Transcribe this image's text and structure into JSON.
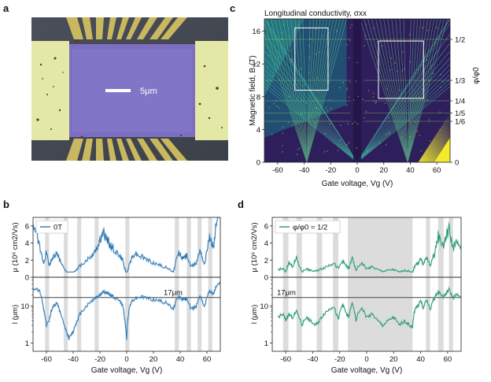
{
  "panels": {
    "a": {
      "letter": "a",
      "scale_bar_label": "5μm"
    },
    "b": {
      "letter": "b"
    },
    "c": {
      "letter": "c"
    },
    "d": {
      "letter": "d"
    }
  },
  "chart_data": [
    {
      "panel": "c",
      "type": "heatmap",
      "title": "Longitudinal conductivity, σxx",
      "xlabel": "Gate voltage, Vg (V)",
      "ylabel": "Magnetic field, B (T)",
      "right_label": "φ/φ0",
      "xlim": [
        -70,
        70
      ],
      "ylim": [
        0,
        17.5
      ],
      "xticks": [
        -60,
        -40,
        -20,
        0,
        20,
        40,
        60
      ],
      "yticks": [
        0,
        4,
        8,
        12,
        16
      ],
      "right_ticks": [
        {
          "label": "1/2",
          "B": 15.0
        },
        {
          "label": "1/3",
          "B": 10.0
        },
        {
          "label": "1/4",
          "B": 7.5
        },
        {
          "label": "1/5",
          "B": 6.0
        },
        {
          "label": "1/6",
          "B": 5.0
        },
        {
          "label": "0",
          "B": 0.0
        }
      ],
      "highlight_boxes": [
        {
          "vg": [
            -47,
            -22
          ],
          "B": [
            8.8,
            16.4
          ]
        },
        {
          "vg": [
            16,
            50
          ],
          "B": [
            7.8,
            14.8
          ]
        }
      ]
    },
    {
      "panel": "b",
      "type": "line",
      "legend": "0T",
      "xlabel": "Gate voltage, Vg (V)",
      "top_ylabel": "μ (10⁶ cm2/Vs)",
      "bottom_ylabel": "l (μm)",
      "xlim": [
        -70,
        70
      ],
      "xticks": [
        -60,
        -40,
        -20,
        0,
        20,
        40,
        60
      ],
      "top_ylim": [
        0,
        7
      ],
      "top_yticks": [
        0,
        2,
        4,
        6
      ],
      "bottom_yticks": [
        "1",
        "10"
      ],
      "reference_line_label": "17μm",
      "reference_line_value": 17,
      "shaded_bands_vg": [
        [
          -61,
          -58
        ],
        [
          -47,
          -44
        ],
        [
          -37,
          -34
        ],
        [
          -24,
          -21
        ],
        [
          -1,
          2
        ],
        [
          36,
          39
        ],
        [
          45,
          48
        ],
        [
          53,
          56
        ],
        [
          61,
          64
        ]
      ],
      "mobility": {
        "vg": [
          -70,
          -65,
          -62,
          -60,
          -58,
          -55,
          -52,
          -50,
          -47,
          -45,
          -43,
          -40,
          -37,
          -35,
          -30,
          -26,
          -24,
          -22,
          -20,
          -17,
          -14,
          -12,
          -10,
          -6,
          -3,
          -1,
          0,
          1,
          3,
          6,
          10,
          15,
          20,
          25,
          30,
          35,
          37,
          39,
          42,
          45,
          48,
          52,
          55,
          58,
          62,
          65,
          67,
          70
        ],
        "mu": [
          6.5,
          3.5,
          1.7,
          3,
          1.4,
          2.4,
          2.8,
          2,
          1,
          0.6,
          0.3,
          0.5,
          1,
          1.3,
          2,
          2.5,
          3,
          3.4,
          4.4,
          5.1,
          4.2,
          3.6,
          3.4,
          2.6,
          2,
          0.8,
          0.2,
          1,
          2,
          2.8,
          2.5,
          2.1,
          1.7,
          1.4,
          1.1,
          0.6,
          2,
          2.9,
          2.2,
          2.6,
          1.2,
          1.7,
          3.4,
          1.4,
          4.6,
          3.6,
          6.5,
          7
        ]
      },
      "mean_free_path": {
        "vg": [
          -70,
          -65,
          -62,
          -60,
          -58,
          -55,
          -52,
          -50,
          -47,
          -45,
          -43,
          -40,
          -37,
          -35,
          -30,
          -26,
          -24,
          -22,
          -20,
          -17,
          -14,
          -12,
          -10,
          -6,
          -3,
          -1,
          0,
          1,
          3,
          6,
          10,
          15,
          20,
          25,
          30,
          35,
          37,
          39,
          42,
          45,
          48,
          52,
          55,
          58,
          62,
          65,
          67,
          70
        ],
        "l": [
          30,
          25,
          8,
          3,
          4,
          10,
          12,
          7,
          3,
          2,
          1.3,
          2,
          4,
          6,
          10,
          14,
          16,
          18,
          20,
          24,
          22,
          20,
          18,
          15,
          10,
          3,
          1.2,
          5,
          12,
          16,
          18,
          17,
          15,
          14,
          12,
          8,
          14,
          18,
          15,
          16,
          8,
          10,
          20,
          9,
          25,
          22,
          35,
          40
        ]
      }
    },
    {
      "panel": "d",
      "type": "line",
      "legend": "φ/φ0 = 1/2",
      "xlabel": "Gate voltage, Vg (V)",
      "top_ylabel": "μ (10⁶ cm2/Vs)",
      "bottom_ylabel": "l (μm)",
      "xlim": [
        -70,
        70
      ],
      "xticks": [
        -60,
        -40,
        -20,
        0,
        20,
        40,
        60
      ],
      "top_ylim": [
        0,
        7
      ],
      "top_yticks": [
        0,
        2,
        4,
        6
      ],
      "bottom_yticks": [
        "1",
        "10"
      ],
      "reference_line_label": "17μm",
      "reference_line_value": 17,
      "shaded_bands_vg": [
        [
          -62,
          -58
        ],
        [
          -52,
          -48
        ],
        [
          -37,
          -33
        ],
        [
          -25,
          -21
        ],
        [
          -14,
          34
        ],
        [
          44,
          47
        ],
        [
          53,
          57
        ],
        [
          61,
          64
        ]
      ],
      "mobility": {
        "vg": [
          -66,
          -62,
          -60,
          -58,
          -55,
          -52,
          -48,
          -45,
          -42,
          -38,
          -35,
          -32,
          -28,
          -25,
          -21,
          -18,
          -15,
          -13,
          -11,
          -8,
          -4,
          0,
          4,
          8,
          12,
          16,
          20,
          24,
          28,
          32,
          34,
          36,
          38,
          40,
          42,
          44,
          47,
          50,
          53,
          57,
          59,
          61,
          64,
          66,
          70
        ],
        "mu": [
          0.9,
          1,
          0.6,
          1.7,
          1.3,
          2.2,
          0.6,
          1,
          0.8,
          0.7,
          0.9,
          1.1,
          1.4,
          1.7,
          1,
          1.9,
          1.3,
          1,
          2.3,
          0.8,
          1.7,
          1,
          1.2,
          0.9,
          0.7,
          0.8,
          0.9,
          0.6,
          0.8,
          0.7,
          0.5,
          1.5,
          1.6,
          2.2,
          1.4,
          2.4,
          1.4,
          2.6,
          4.8,
          3.7,
          4.8,
          5.7,
          3.4,
          4,
          3.6
        ]
      },
      "mean_free_path": {
        "vg": [
          -66,
          -62,
          -60,
          -58,
          -55,
          -52,
          -48,
          -45,
          -42,
          -38,
          -35,
          -32,
          -28,
          -25,
          -21,
          -18,
          -15,
          -13,
          -11,
          -8,
          -4,
          0,
          4,
          8,
          12,
          16,
          20,
          24,
          28,
          32,
          34,
          36,
          38,
          40,
          42,
          44,
          47,
          50,
          53,
          57,
          59,
          61,
          64,
          66,
          70
        ],
        "l": [
          5,
          6,
          4,
          6,
          5,
          7,
          3,
          5,
          4,
          3,
          4,
          6,
          8,
          10,
          4,
          11,
          6,
          5,
          12,
          4,
          9,
          5,
          6,
          4,
          3,
          4,
          5,
          3,
          4,
          3,
          2.5,
          9,
          10,
          14,
          8,
          15,
          8,
          16,
          24,
          18,
          22,
          28,
          16,
          20,
          18
        ]
      }
    }
  ]
}
